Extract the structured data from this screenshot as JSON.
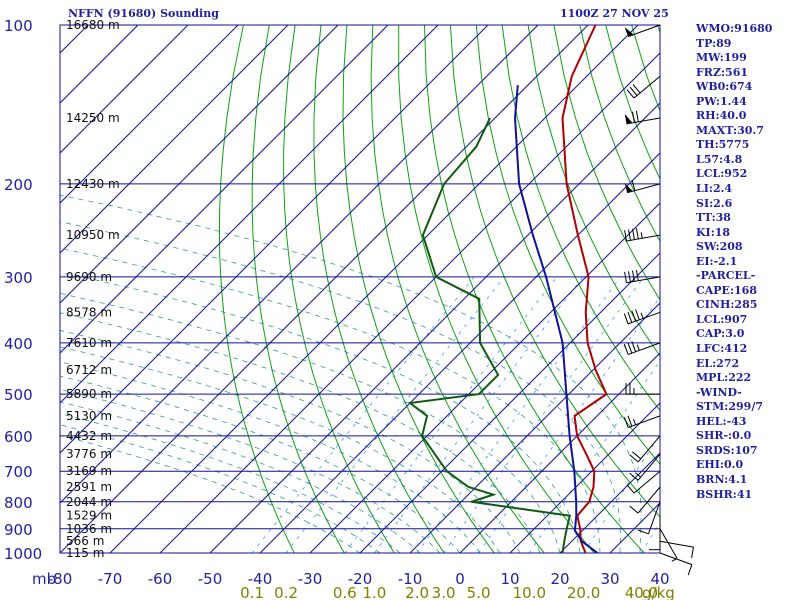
{
  "header": {
    "station": "NFFN (91680) Sounding",
    "time": "1100Z 27 NOV 25"
  },
  "stats": [
    "WMO:91680",
    "TP:89",
    "MW:199",
    "FRZ:561",
    "WB0:674",
    "PW:1.44",
    "RH:40.0",
    "MAXT:30.7",
    "TH:5775",
    "L57:4.8",
    "LCL:952",
    "LI:2.4",
    "SI:2.6",
    "TT:38",
    "KI:18",
    "SW:208",
    "EI:-2.1",
    "-PARCEL-",
    "CAPE:168",
    "CINH:285",
    "LCL:907",
    "CAP:3.0",
    "LFC:412",
    "EL:272",
    "MPL:222",
    "-WIND-",
    "STM:299/7",
    "HEL:-43",
    "SHR-:0.0",
    "SRDS:107",
    "EHI:0.0",
    "BRN:4.1",
    "BSHR:41"
  ],
  "chart_data": {
    "type": "line",
    "title": "NFFN (91680) Sounding",
    "xlabel": "",
    "ylabel": "mb",
    "xlim": [
      -80,
      40
    ],
    "ylim": [
      1000,
      100
    ],
    "y_scale": "log",
    "pressure_ticks": [
      100,
      200,
      300,
      400,
      500,
      600,
      700,
      800,
      900,
      1000
    ],
    "temp_ticks": [
      -80,
      -70,
      -60,
      -50,
      -40,
      -30,
      -20,
      -10,
      0,
      10,
      20,
      30,
      40
    ],
    "temp_tick_labels": [
      "-80",
      "-70",
      "-60",
      "-50",
      "-40",
      "-30",
      "-20",
      "-10",
      "0",
      "10",
      "20",
      "30",
      "40"
    ],
    "height_labels": [
      {
        "p": 100,
        "label": "16680 m"
      },
      {
        "p": 150,
        "label": "14250 m"
      },
      {
        "p": 200,
        "label": "12430 m"
      },
      {
        "p": 250,
        "label": "10950 m"
      },
      {
        "p": 300,
        "label": "9690 m"
      },
      {
        "p": 350,
        "label": "8578 m"
      },
      {
        "p": 400,
        "label": "7610 m"
      },
      {
        "p": 450,
        "label": "6712 m"
      },
      {
        "p": 500,
        "label": "5890 m"
      },
      {
        "p": 550,
        "label": "5130 m"
      },
      {
        "p": 600,
        "label": "4432 m"
      },
      {
        "p": 650,
        "label": "3776 m"
      },
      {
        "p": 700,
        "label": "3169 m"
      },
      {
        "p": 750,
        "label": "2591 m"
      },
      {
        "p": 800,
        "label": "2044 m"
      },
      {
        "p": 850,
        "label": "1529 m"
      },
      {
        "p": 900,
        "label": "1036 m"
      },
      {
        "p": 950,
        "label": "566 m"
      },
      {
        "p": 1000,
        "label": "115 m"
      }
    ],
    "mixing_ratio_labels": [
      "0.1",
      "0.2",
      "0.6",
      "1.0",
      "2.0",
      "3.0",
      "5.0",
      "10.0",
      "20.0",
      "40.0"
    ],
    "mixing_ratio_unit": "g/kg",
    "series": [
      {
        "role": "temperature",
        "color": "#b00000",
        "points": [
          {
            "p": 1000,
            "t": 25.1
          },
          {
            "p": 950,
            "t": 21.8
          },
          {
            "p": 900,
            "t": 19.2
          },
          {
            "p": 850,
            "t": 16.0
          },
          {
            "p": 800,
            "t": 15.6
          },
          {
            "p": 750,
            "t": 13.5
          },
          {
            "p": 700,
            "t": 10.5
          },
          {
            "p": 650,
            "t": 5.5
          },
          {
            "p": 600,
            "t": 0.0
          },
          {
            "p": 550,
            "t": -4.5
          },
          {
            "p": 500,
            "t": -2.5
          },
          {
            "p": 450,
            "t": -9.5
          },
          {
            "p": 400,
            "t": -16.5
          },
          {
            "p": 350,
            "t": -23.0
          },
          {
            "p": 300,
            "t": -29.5
          },
          {
            "p": 250,
            "t": -40.0
          },
          {
            "p": 200,
            "t": -52.5
          },
          {
            "p": 150,
            "t": -66.5
          },
          {
            "p": 125,
            "t": -73.0
          },
          {
            "p": 100,
            "t": -78.5
          }
        ]
      },
      {
        "role": "dewpoint",
        "color": "#0f5a0f",
        "points": [
          {
            "p": 1000,
            "t": 20.5
          },
          {
            "p": 950,
            "t": 18.5
          },
          {
            "p": 900,
            "t": 16.5
          },
          {
            "p": 850,
            "t": 14.5
          },
          {
            "p": 800,
            "t": -8.0
          },
          {
            "p": 775,
            "t": -5.0
          },
          {
            "p": 750,
            "t": -11.5
          },
          {
            "p": 700,
            "t": -19.0
          },
          {
            "p": 600,
            "t": -31.0
          },
          {
            "p": 550,
            "t": -34.0
          },
          {
            "p": 520,
            "t": -40.0
          },
          {
            "p": 500,
            "t": -28.0
          },
          {
            "p": 460,
            "t": -28.0
          },
          {
            "p": 400,
            "t": -38.0
          },
          {
            "p": 330,
            "t": -47.0
          },
          {
            "p": 300,
            "t": -60.0
          },
          {
            "p": 250,
            "t": -71.0
          },
          {
            "p": 200,
            "t": -77.0
          },
          {
            "p": 170,
            "t": -78.0
          },
          {
            "p": 150,
            "t": -81.0
          }
        ]
      },
      {
        "role": "parcel",
        "color": "#10109a",
        "points": [
          {
            "p": 1000,
            "t": 27.5
          },
          {
            "p": 950,
            "t": 22.0
          },
          {
            "p": 907,
            "t": 18.5
          },
          {
            "p": 850,
            "t": 15.8
          },
          {
            "p": 800,
            "t": 13.0
          },
          {
            "p": 700,
            "t": 6.5
          },
          {
            "p": 600,
            "t": -1.5
          },
          {
            "p": 500,
            "t": -10.5
          },
          {
            "p": 400,
            "t": -21.5
          },
          {
            "p": 300,
            "t": -38.0
          },
          {
            "p": 250,
            "t": -49.0
          },
          {
            "p": 200,
            "t": -62.0
          },
          {
            "p": 150,
            "t": -76.0
          },
          {
            "p": 130,
            "t": -82.0
          }
        ]
      }
    ],
    "wind_barbs": [
      {
        "p": 1000,
        "dir": 110,
        "spd": 10
      },
      {
        "p": 950,
        "dir": 100,
        "spd": 10
      },
      {
        "p": 900,
        "dir": 150,
        "spd": 5
      },
      {
        "p": 850,
        "dir": 180,
        "spd": 10
      },
      {
        "p": 800,
        "dir": 200,
        "spd": 10
      },
      {
        "p": 750,
        "dir": 220,
        "spd": 10
      },
      {
        "p": 700,
        "dir": 230,
        "spd": 10
      },
      {
        "p": 650,
        "dir": 220,
        "spd": 15
      },
      {
        "p": 600,
        "dir": 220,
        "spd": 20
      },
      {
        "p": 550,
        "dir": 250,
        "spd": 25
      },
      {
        "p": 500,
        "dir": 270,
        "spd": 25
      },
      {
        "p": 400,
        "dir": 250,
        "spd": 35
      },
      {
        "p": 350,
        "dir": 250,
        "spd": 45
      },
      {
        "p": 300,
        "dir": 260,
        "spd": 40
      },
      {
        "p": 250,
        "dir": 260,
        "spd": 45
      },
      {
        "p": 200,
        "dir": 255,
        "spd": 60
      },
      {
        "p": 150,
        "dir": 260,
        "spd": 70
      },
      {
        "p": 125,
        "dir": 230,
        "spd": 30
      },
      {
        "p": 100,
        "dir": 250,
        "spd": 50
      }
    ],
    "grid": true,
    "colors": {
      "isobar": "#10109a",
      "isotherm": "#1010a0",
      "dry_adiabat": "#10a010",
      "moist_adiabat": "#008080",
      "mixing_ratio": "#3399ff",
      "text": "#1f1fa0",
      "height_text": "#101010"
    }
  }
}
